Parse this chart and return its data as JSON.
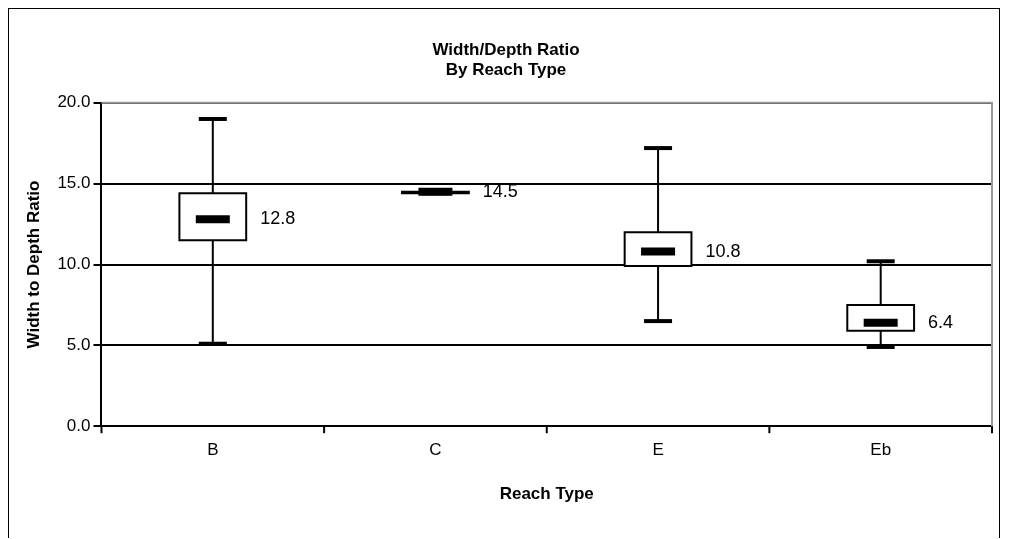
{
  "chart_data": {
    "type": "box",
    "title": "Width/Depth Ratio\nBy Reach Type",
    "xlabel": "Reach Type",
    "ylabel": "Width to Depth Ratio",
    "categories": [
      "B",
      "C",
      "E",
      "Eb"
    ],
    "boxes": [
      {
        "low": 5.1,
        "q1": 11.5,
        "median": 12.8,
        "q3": 14.4,
        "high": 19.0
      },
      {
        "low": 14.4,
        "q1": 14.4,
        "median": 14.5,
        "q3": 14.5,
        "high": 14.5
      },
      {
        "low": 6.5,
        "q1": 9.9,
        "median": 10.8,
        "q3": 12.0,
        "high": 17.2
      },
      {
        "low": 4.9,
        "q1": 5.9,
        "median": 6.4,
        "q3": 7.5,
        "high": 10.2
      }
    ],
    "ylim": [
      0,
      20
    ],
    "yticks": [
      {
        "value": 0,
        "label": "0.0"
      },
      {
        "value": 5,
        "label": "5.0"
      },
      {
        "value": 10,
        "label": "10.0"
      },
      {
        "value": 15,
        "label": "15.0"
      },
      {
        "value": 20,
        "label": "20.0"
      }
    ],
    "grid": "y",
    "annotations": [
      {
        "text": "12.8",
        "x": "B",
        "y": 12.8
      },
      {
        "text": "14.5",
        "x": "C",
        "y": 14.5
      },
      {
        "text": "10.8",
        "x": "E",
        "y": 10.8
      },
      {
        "text": "6.4",
        "x": "Eb",
        "y": 6.4
      }
    ]
  }
}
